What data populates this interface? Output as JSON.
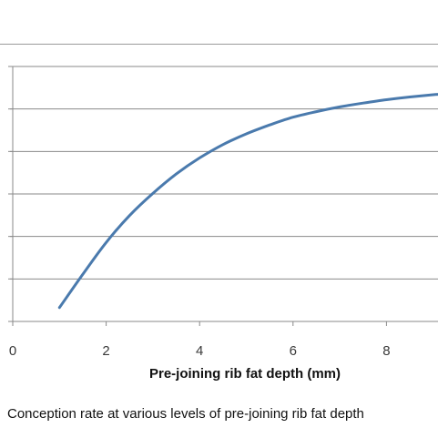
{
  "chart_data": {
    "type": "line",
    "xlabel": "Pre-joining rib fat depth (mm)",
    "ylabel": "",
    "xlim": [
      0,
      9.2
    ],
    "xticks": [
      0,
      2,
      4,
      6,
      8
    ],
    "gridlines": 6,
    "grid": true,
    "legend": "none",
    "series": [
      {
        "color": "#4a7aad",
        "x": [
          1,
          1.5,
          2,
          2.5,
          3,
          3.5,
          4,
          4.5,
          5,
          5.5,
          6,
          6.5,
          7,
          7.5,
          8,
          8.5,
          9,
          9.2
        ],
        "y": [
          0.5,
          1.7,
          2.85,
          3.82,
          4.62,
          5.32,
          5.9,
          6.38,
          6.77,
          7.09,
          7.37,
          7.57,
          7.74,
          7.88,
          8.0,
          8.1,
          8.18,
          8.2
        ]
      }
    ]
  },
  "caption": "Conception rate at various levels of pre-joining rib fat depth"
}
